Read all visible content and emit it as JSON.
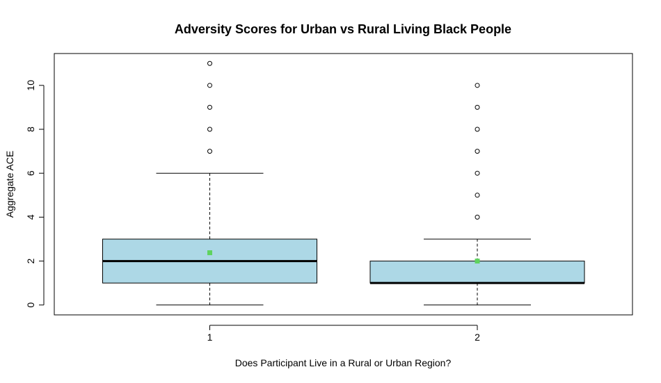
{
  "chart_data": {
    "type": "box",
    "title": "Adversity Scores for Urban vs Rural Living Black People",
    "xlabel": "Does Participant Live in a Rural or Urban Region?",
    "ylabel": "Aggregate ACE",
    "categories": [
      "1",
      "2"
    ],
    "yticks": [
      0,
      2,
      4,
      6,
      8,
      10
    ],
    "ylim": [
      -0.45,
      11.45
    ],
    "box_fill": "#add8e6",
    "mean_color": "#5fd35f",
    "boxes": [
      {
        "category": "1",
        "whisker_low": 0,
        "q1": 1,
        "median": 2,
        "q3": 3,
        "whisker_high": 6,
        "mean": 2.38,
        "outliers": [
          7,
          8,
          9,
          10,
          11
        ]
      },
      {
        "category": "2",
        "whisker_low": 0,
        "q1": 1,
        "median": 1,
        "q3": 2,
        "whisker_high": 3,
        "mean": 2.0,
        "outliers": [
          4,
          5,
          6,
          7,
          8,
          9,
          10
        ]
      }
    ]
  }
}
